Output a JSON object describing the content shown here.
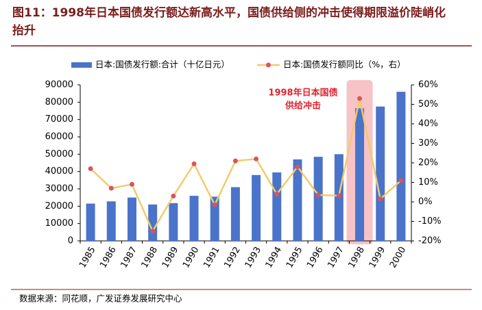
{
  "chart_data": {
    "type": "bar_line",
    "title": "图11：1998年日本国债发行额达新高水平，国债供给侧的冲击使得期限溢价陡峭化抬升",
    "categories": [
      "1985",
      "1986",
      "1987",
      "1988",
      "1989",
      "1990",
      "1991",
      "1992",
      "1993",
      "1994",
      "1995",
      "1996",
      "1997",
      "1998",
      "1999",
      "2000"
    ],
    "series": [
      {
        "name": "日本:国债发行额:合计（十亿日元）",
        "type": "bar",
        "color": "#4a74c9",
        "values": [
          21500,
          22800,
          25000,
          21000,
          21800,
          26000,
          25500,
          31000,
          38000,
          39500,
          47000,
          48500,
          50000,
          76500,
          77500,
          86000
        ]
      },
      {
        "name": "日本:国债发行额同比（%，右）",
        "type": "line",
        "axis": "y2",
        "color": "#f2cb6b",
        "marker_color": "#d9545c",
        "values": [
          17,
          7,
          9,
          -15,
          3,
          19.5,
          -1.5,
          21,
          22,
          4,
          18,
          3.5,
          3.2,
          53,
          1.5,
          11
        ]
      }
    ],
    "ylim": [
      0,
      90000
    ],
    "yticks": [
      0,
      10000,
      20000,
      30000,
      40000,
      50000,
      60000,
      70000,
      80000,
      90000
    ],
    "y2lim": [
      -20,
      60
    ],
    "y2ticks": [
      {
        "value": -20,
        "label": "-20%"
      },
      {
        "value": -10,
        "label": "-10%"
      },
      {
        "value": 0,
        "label": "0%"
      },
      {
        "value": 10,
        "label": "10%"
      },
      {
        "value": 20,
        "label": "20%"
      },
      {
        "value": 30,
        "label": "30%"
      },
      {
        "value": 40,
        "label": "40%"
      },
      {
        "value": 50,
        "label": "50%"
      },
      {
        "value": 60,
        "label": "60%"
      }
    ],
    "annotation": [
      "1998年日本国债",
      "供给冲击"
    ],
    "source": "数据来源：同花顺，广发证券发展研究中心"
  }
}
